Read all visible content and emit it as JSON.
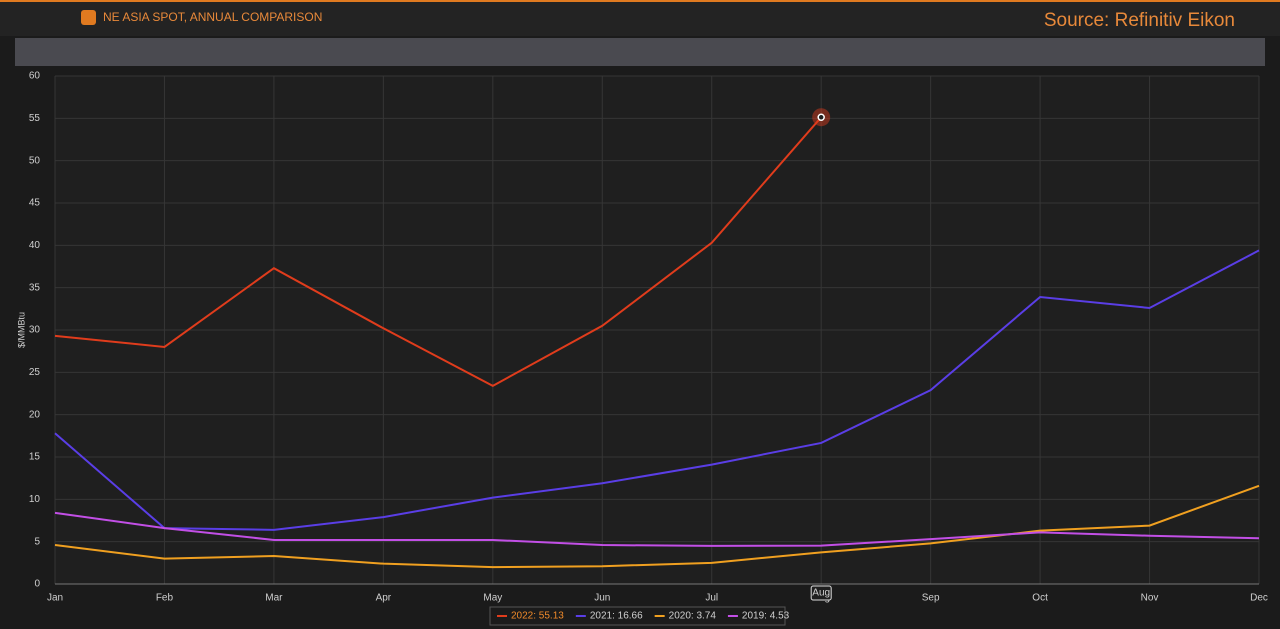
{
  "header": {
    "title": "NE ASIA SPOT, ANNUAL COMPARISON",
    "source": "Source: Refinitiv Eikon"
  },
  "chart_data": {
    "type": "line",
    "y_label": "$/MMBtu",
    "hover_label": "Aug",
    "categories": [
      "Jan",
      "Feb",
      "Mar",
      "Apr",
      "May",
      "Jun",
      "Jul",
      "Aug",
      "Sep",
      "Oct",
      "Nov",
      "Dec"
    ],
    "ylim": [
      0,
      60
    ],
    "yticks": [
      0,
      5,
      10,
      15,
      20,
      25,
      30,
      35,
      40,
      45,
      50,
      55,
      60
    ],
    "grid": true,
    "legend": "bottom",
    "series": [
      {
        "name": "2022: 55.13",
        "color": "#e03c1c",
        "values": [
          29.3,
          28.0,
          37.3,
          30.2,
          23.4,
          30.5,
          40.3,
          55.13,
          null,
          null,
          null,
          null
        ]
      },
      {
        "name": "2021: 16.66",
        "color": "#5a3ee6",
        "values": [
          17.8,
          6.6,
          6.4,
          7.9,
          10.2,
          11.9,
          14.1,
          16.66,
          22.9,
          33.9,
          32.6,
          39.4
        ]
      },
      {
        "name": "2020: 3.74",
        "color": "#f0a020",
        "values": [
          4.6,
          3.0,
          3.3,
          2.4,
          2.0,
          2.1,
          2.5,
          3.74,
          4.8,
          6.3,
          6.9,
          11.6
        ]
      },
      {
        "name": "2019: 4.53",
        "color": "#c24fe6",
        "values": [
          8.4,
          6.6,
          5.2,
          5.2,
          5.2,
          4.6,
          4.5,
          4.53,
          5.3,
          6.1,
          5.7,
          5.4
        ]
      }
    ]
  }
}
